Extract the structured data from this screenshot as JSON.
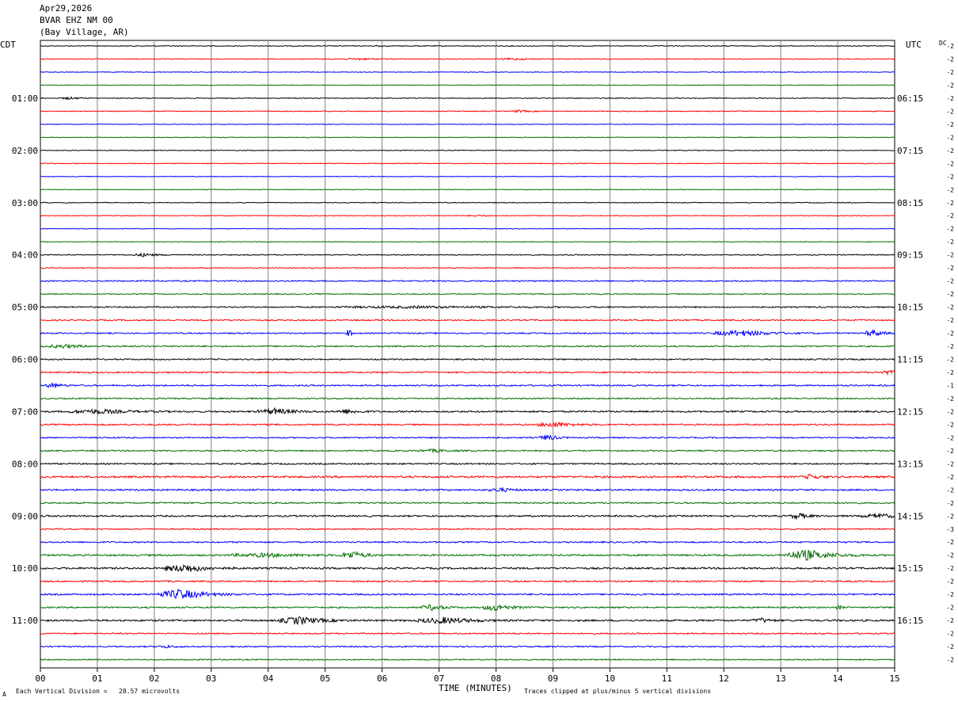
{
  "header": {
    "date": "Apr29,2026",
    "station": "BVAR EHZ NM 00",
    "location": "(Bay Village, AR)"
  },
  "left_axis_label": "CDT",
  "right_axis_label": "UTC",
  "dc_label": "DC",
  "footer": {
    "scale_note": "Each Vertical Division =   28.57 microvolts",
    "clip_note": "Traces clipped at plus/minus 5 vertical divisions",
    "corner_mark": "A"
  },
  "colors": {
    "trace_cycle": [
      "#000000",
      "#ff0000",
      "#0000ff",
      "#007000"
    ],
    "grid": "#808080"
  },
  "chart_data": {
    "type": "line",
    "title": "",
    "xlabel": "TIME (MINUTES)",
    "ylabel": "",
    "xlim": [
      0,
      15
    ],
    "x_tick_labels": [
      "00",
      "01",
      "02",
      "03",
      "04",
      "05",
      "06",
      "07",
      "08",
      "09",
      "10",
      "11",
      "12",
      "13",
      "14",
      "15"
    ],
    "rows": 48,
    "row_minutes": 15,
    "left_hour_labels": [
      {
        "row": 4,
        "label": "01:00"
      },
      {
        "row": 8,
        "label": "02:00"
      },
      {
        "row": 12,
        "label": "03:00"
      },
      {
        "row": 16,
        "label": "04:00"
      },
      {
        "row": 20,
        "label": "05:00"
      },
      {
        "row": 24,
        "label": "06:00"
      },
      {
        "row": 28,
        "label": "07:00"
      },
      {
        "row": 32,
        "label": "08:00"
      },
      {
        "row": 36,
        "label": "09:00"
      },
      {
        "row": 40,
        "label": "10:00"
      },
      {
        "row": 44,
        "label": "11:00"
      }
    ],
    "right_hour_labels": [
      {
        "row": 4,
        "label": "06:15"
      },
      {
        "row": 8,
        "label": "07:15"
      },
      {
        "row": 12,
        "label": "08:15"
      },
      {
        "row": 16,
        "label": "09:15"
      },
      {
        "row": 20,
        "label": "10:15"
      },
      {
        "row": 24,
        "label": "11:15"
      },
      {
        "row": 28,
        "label": "12:15"
      },
      {
        "row": 32,
        "label": "13:15"
      },
      {
        "row": 36,
        "label": "14:15"
      },
      {
        "row": 40,
        "label": "15:15"
      },
      {
        "row": 44,
        "label": "16:15"
      }
    ],
    "dc_offsets": [
      "-2",
      "-2",
      "-2",
      "-2",
      "-2",
      "-2",
      "-2",
      "-2",
      "-2",
      "-2",
      "-2",
      "-2",
      "-2",
      "-2",
      "-2",
      "-2",
      "-2",
      "-2",
      "-2",
      "-2",
      "-2",
      "-2",
      "-2",
      "-2",
      "-2",
      "-2",
      "-1",
      "-2",
      "-2",
      "-2",
      "-2",
      "-2",
      "-2",
      "-2",
      "-2",
      "-2",
      "-2",
      "-3",
      "-2",
      "-2",
      "-2",
      "-2",
      "-2",
      "-2",
      "-2",
      "-2",
      "-2",
      "-2"
    ],
    "row_noise": [
      1.0,
      1.0,
      0.8,
      0.8,
      1.0,
      1.0,
      0.8,
      0.8,
      0.9,
      0.9,
      0.8,
      0.8,
      0.9,
      0.9,
      0.8,
      0.8,
      1.2,
      1.0,
      1.6,
      1.2,
      1.6,
      1.6,
      1.6,
      1.8,
      1.6,
      1.8,
      1.8,
      1.6,
      2.0,
      1.8,
      1.6,
      1.6,
      1.8,
      2.4,
      2.0,
      1.8,
      2.0,
      1.6,
      1.8,
      2.2,
      2.2,
      1.8,
      2.0,
      1.8,
      2.2,
      1.6,
      1.6,
      1.4
    ],
    "events": [
      {
        "row": 0,
        "minute": 5.92,
        "amp": 3,
        "duration": 0.1
      },
      {
        "row": 1,
        "minute": 5.5,
        "amp": 2,
        "duration": 0.5
      },
      {
        "row": 1,
        "minute": 8.2,
        "amp": 2,
        "duration": 0.5
      },
      {
        "row": 4,
        "minute": 0.45,
        "amp": 3,
        "duration": 0.3
      },
      {
        "row": 5,
        "minute": 8.35,
        "amp": 3,
        "duration": 0.3
      },
      {
        "row": 13,
        "minute": 7.6,
        "amp": 2,
        "duration": 0.3
      },
      {
        "row": 16,
        "minute": 1.75,
        "amp": 4,
        "duration": 0.4
      },
      {
        "row": 20,
        "minute": 6.0,
        "amp": 2,
        "duration": 3.0
      },
      {
        "row": 22,
        "minute": 5.4,
        "amp": 12,
        "duration": 0.08
      },
      {
        "row": 22,
        "minute": 12.1,
        "amp": 7,
        "duration": 1.0
      },
      {
        "row": 22,
        "minute": 14.55,
        "amp": 9,
        "duration": 0.3
      },
      {
        "row": 23,
        "minute": 0.3,
        "amp": 4,
        "duration": 0.6
      },
      {
        "row": 25,
        "minute": 14.8,
        "amp": 4,
        "duration": 0.4
      },
      {
        "row": 26,
        "minute": 0.15,
        "amp": 6,
        "duration": 0.3
      },
      {
        "row": 28,
        "minute": 0.8,
        "amp": 5,
        "duration": 1.0
      },
      {
        "row": 28,
        "minute": 4.0,
        "amp": 7,
        "duration": 0.6
      },
      {
        "row": 28,
        "minute": 5.3,
        "amp": 5,
        "duration": 0.4
      },
      {
        "row": 29,
        "minute": 8.9,
        "amp": 6,
        "duration": 0.6
      },
      {
        "row": 30,
        "minute": 8.85,
        "amp": 7,
        "duration": 0.3
      },
      {
        "row": 31,
        "minute": 6.8,
        "amp": 3,
        "duration": 0.6
      },
      {
        "row": 33,
        "minute": 13.5,
        "amp": 7,
        "duration": 0.2
      },
      {
        "row": 34,
        "minute": 8.0,
        "amp": 4,
        "duration": 0.4
      },
      {
        "row": 36,
        "minute": 13.25,
        "amp": 7,
        "duration": 0.3
      },
      {
        "row": 36,
        "minute": 14.6,
        "amp": 5,
        "duration": 0.6
      },
      {
        "row": 39,
        "minute": 3.7,
        "amp": 4,
        "duration": 1.2
      },
      {
        "row": 39,
        "minute": 5.4,
        "amp": 9,
        "duration": 0.4
      },
      {
        "row": 39,
        "minute": 13.3,
        "amp": 13,
        "duration": 0.8
      },
      {
        "row": 40,
        "minute": 2.4,
        "amp": 10,
        "duration": 0.7
      },
      {
        "row": 42,
        "minute": 2.3,
        "amp": 12,
        "duration": 0.8
      },
      {
        "row": 43,
        "minute": 6.8,
        "amp": 7,
        "duration": 0.4
      },
      {
        "row": 43,
        "minute": 7.9,
        "amp": 8,
        "duration": 0.5
      },
      {
        "row": 43,
        "minute": 14.0,
        "amp": 6,
        "duration": 0.1
      },
      {
        "row": 44,
        "minute": 4.4,
        "amp": 9,
        "duration": 0.7
      },
      {
        "row": 44,
        "minute": 6.9,
        "amp": 7,
        "duration": 0.9
      },
      {
        "row": 44,
        "minute": 12.6,
        "amp": 5,
        "duration": 0.3
      },
      {
        "row": 46,
        "minute": 2.15,
        "amp": 3,
        "duration": 0.3
      }
    ]
  }
}
